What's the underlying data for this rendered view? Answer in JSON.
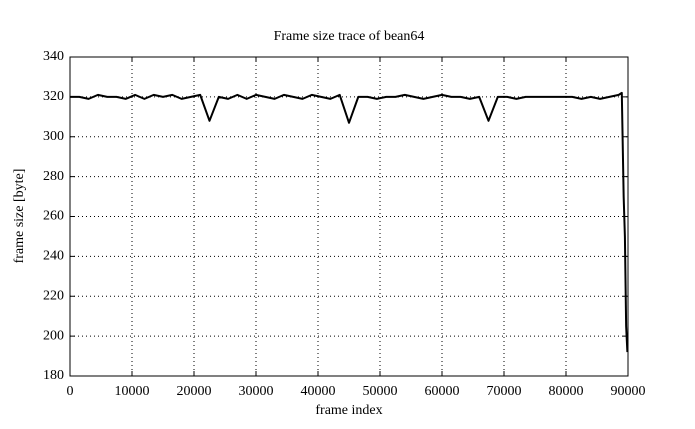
{
  "chart_data": {
    "type": "line",
    "title": "Frame size trace of bean64",
    "x_label": "frame index",
    "y_label": "frame size [byte]",
    "x": [
      0,
      1500,
      3000,
      4500,
      6000,
      7500,
      9000,
      10500,
      12000,
      13500,
      15000,
      16500,
      18000,
      19500,
      21000,
      22500,
      24000,
      25500,
      27000,
      28500,
      30000,
      31500,
      33000,
      34500,
      36000,
      37500,
      39000,
      40500,
      42000,
      43500,
      45000,
      46500,
      48000,
      49500,
      51000,
      52500,
      54000,
      55500,
      57000,
      58500,
      60000,
      61500,
      63000,
      64500,
      66000,
      67500,
      69000,
      70500,
      72000,
      73500,
      75000,
      76500,
      78000,
      79500,
      81000,
      82500,
      84000,
      85500,
      87000,
      88500,
      89000,
      89300,
      89500,
      89700,
      89900
    ],
    "series": [
      {
        "color": "#000000",
        "values": [
          320,
          320,
          319,
          321,
          320,
          320,
          319,
          321,
          319,
          321,
          320,
          321,
          319,
          320,
          321,
          308,
          320,
          319,
          321,
          319,
          321,
          320,
          319,
          321,
          320,
          319,
          321,
          320,
          319,
          321,
          307,
          320,
          320,
          319,
          320,
          320,
          321,
          320,
          319,
          320,
          321,
          320,
          320,
          319,
          320,
          308,
          320,
          320,
          319,
          320,
          320,
          320,
          320,
          320,
          320,
          319,
          320,
          319,
          320,
          321,
          322,
          270,
          250,
          205,
          192
        ]
      }
    ],
    "xlim": [
      0,
      90000
    ],
    "ylim": [
      180,
      340
    ],
    "xticks": [
      0,
      10000,
      20000,
      30000,
      40000,
      50000,
      60000,
      70000,
      80000,
      90000
    ],
    "yticks": [
      180,
      200,
      220,
      240,
      260,
      280,
      300,
      320,
      340
    ],
    "grid": true
  }
}
